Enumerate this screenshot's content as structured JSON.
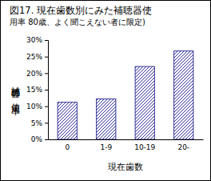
{
  "chart_data": {
    "type": "bar",
    "title": [
      "図17. 現在歯数別にみた補聴器使",
      "用率 80歳、よく聞こえない者に限定)"
    ],
    "x_label": "現在歯数",
    "y_label": "補聴器の使用率",
    "categories": [
      "0",
      "1-9",
      "10-19",
      "20-"
    ],
    "values": [
      11.2,
      12.2,
      22.0,
      26.7
    ],
    "color": "#333399",
    "ylim": [
      0,
      30
    ],
    "yticks": [
      {
        "value": 0,
        "label": "0%"
      },
      {
        "value": 5,
        "label": "5%"
      },
      {
        "value": 10,
        "label": "10%"
      },
      {
        "value": 15,
        "label": "15%"
      },
      {
        "value": 20,
        "label": "20%"
      },
      {
        "value": 25,
        "label": "25%"
      },
      {
        "value": 30,
        "label": "30%"
      }
    ],
    "grid": false
  }
}
